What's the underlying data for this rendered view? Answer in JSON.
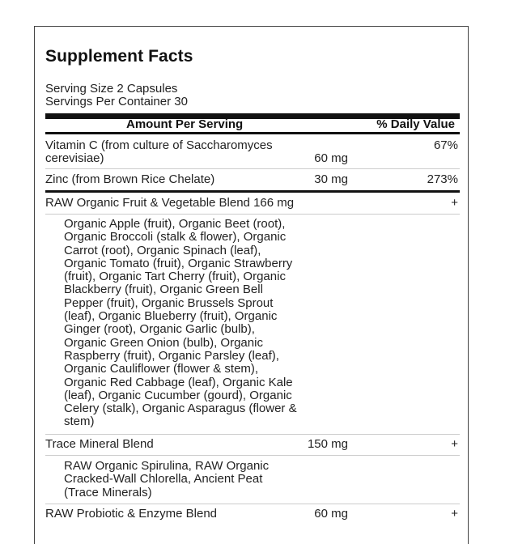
{
  "title": "Supplement Facts",
  "serving_size": "Serving Size 2 Capsules",
  "servings_per_container": "Servings Per Container 30",
  "header": {
    "amount": "Amount Per Serving",
    "daily_value": "% Daily Value"
  },
  "rows": [
    {
      "name_line1": "Vitamin C (from culture of Saccharomyces",
      "name_line2": "cerevisiae)",
      "amount": "60 mg",
      "dv": "67%"
    },
    {
      "name": "Zinc (from Brown Rice Chelate)",
      "amount": "30 mg",
      "dv": "273%"
    },
    {
      "name": "RAW Organic Fruit & Vegetable Blend 166 mg",
      "dv": "+",
      "ingredients": [
        "Organic Apple (fruit), Organic Beet (root),",
        "Organic Broccoli (stalk & flower), Organic",
        "Carrot (root), Organic Spinach (leaf),",
        "Organic Tomato (fruit), Organic Strawberry",
        "(fruit), Organic Tart Cherry (fruit), Organic",
        "Blackberry (fruit), Organic Green Bell",
        "Pepper (fruit), Organic Brussels Sprout",
        "(leaf), Organic Blueberry (fruit), Organic",
        "Ginger (root), Organic Garlic (bulb),",
        "Organic Green Onion (bulb), Organic",
        "Raspberry (fruit), Organic Parsley (leaf),",
        "Organic Cauliflower (flower & stem),",
        "Organic Red Cabbage (leaf), Organic Kale",
        "(leaf), Organic Cucumber (gourd), Organic",
        "Celery (stalk), Organic Asparagus (flower &",
        "stem)"
      ]
    },
    {
      "name": "Trace Mineral Blend",
      "amount": "150 mg",
      "dv": "+",
      "ingredients": [
        "RAW Organic Spirulina, RAW Organic",
        "Cracked-Wall Chlorella, Ancient Peat",
        "(Trace Minerals)"
      ]
    },
    {
      "name": "RAW Probiotic & Enzyme Blend",
      "amount": "60 mg",
      "dv": "+"
    }
  ]
}
